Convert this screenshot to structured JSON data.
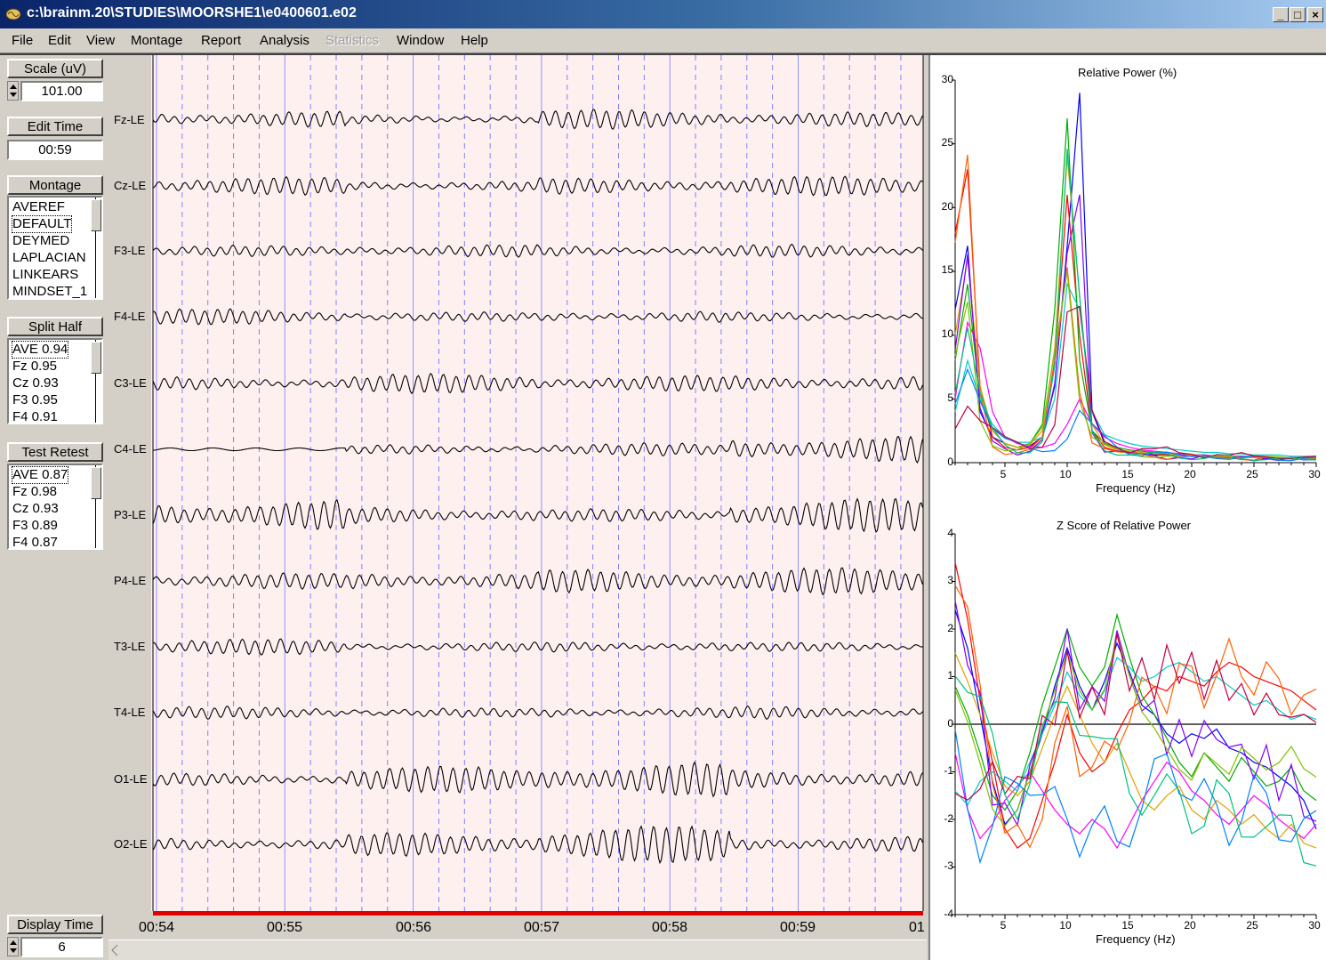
{
  "window": {
    "title": "c:\\brainm.20\\STUDIES\\MOORSHE1\\e0400601.e02",
    "controls": {
      "minimize": "_",
      "maximize": "□",
      "close": "×"
    }
  },
  "menu": [
    "File",
    "Edit",
    "View",
    "Montage",
    "Report",
    "Analysis",
    "Statistics",
    "Window",
    "Help"
  ],
  "menu_disabled": [
    "Statistics"
  ],
  "left_panel": {
    "scale_label": "Scale (uV)",
    "scale_value": "101.00",
    "edit_time_label": "Edit Time",
    "edit_time_value": "00:59",
    "montage_label": "Montage",
    "montage_items": [
      "AVEREF",
      "DEFAULT",
      "DEYMED",
      "LAPLACIAN",
      "LINKEARS",
      "MINDSET_1"
    ],
    "montage_selected": "DEFAULT",
    "split_half_label": "Split Half",
    "split_half_items": [
      "AVE  0.94",
      "Fz  0.95",
      "Cz  0.93",
      "F3  0.95",
      "F4  0.91"
    ],
    "test_retest_label": "Test Retest",
    "test_retest_items": [
      "AVE  0.87",
      "Fz  0.98",
      "Cz  0.93",
      "F3  0.89",
      "F4  0.87"
    ],
    "display_time_label": "Display Time",
    "display_time_value": "6"
  },
  "eeg": {
    "channels": [
      "Fz-LE",
      "Cz-LE",
      "F3-LE",
      "F4-LE",
      "C3-LE",
      "C4-LE",
      "P3-LE",
      "P4-LE",
      "T3-LE",
      "T4-LE",
      "O1-LE",
      "O2-LE"
    ],
    "time_labels": [
      "00:54",
      "00:55",
      "00:56",
      "00:57",
      "00:58",
      "00:59",
      "01"
    ]
  },
  "spectra": {
    "colors": [
      "#0000ff",
      "#ff0000",
      "#00aa00",
      "#ff00ff",
      "#00cccc",
      "#e0a000",
      "#8000ff",
      "#ff6000",
      "#80c000",
      "#0080ff",
      "#c00040",
      "#00c080"
    ],
    "relative_power": {
      "title": "Relative Power (%)",
      "y_ticks": [
        "30",
        "25",
        "20",
        "15",
        "10",
        "5",
        "0"
      ],
      "x_ticks": [
        "5",
        "10",
        "15",
        "20",
        "25",
        "30"
      ],
      "xlabel": "Frequency (Hz)"
    },
    "zscore": {
      "title": "Z Score of Relative Power",
      "y_ticks": [
        "4",
        "3",
        "2",
        "1",
        "0",
        "-1",
        "-2",
        "-3",
        "-4"
      ],
      "x_ticks": [
        "5",
        "10",
        "15",
        "20",
        "25",
        "30"
      ],
      "xlabel": "Frequency (Hz)"
    }
  },
  "chart_data": [
    {
      "type": "line",
      "title": "Relative Power (%)",
      "xlabel": "Frequency (Hz)",
      "ylabel": "",
      "xlim": [
        1,
        30
      ],
      "ylim": [
        0,
        30
      ],
      "x": [
        1,
        2,
        3,
        4,
        5,
        6,
        7,
        8,
        9,
        10,
        11,
        12,
        13,
        14,
        15,
        16,
        17,
        18,
        19,
        20,
        21,
        22,
        23,
        24,
        25,
        26,
        27,
        28,
        29,
        30
      ],
      "series": [
        {
          "values": [
            12,
            17,
            4,
            2,
            1.5,
            1.2,
            1.3,
            2,
            6,
            17,
            29,
            4,
            1.5,
            1,
            0.8,
            0.7,
            0.6,
            0.6,
            0.5,
            0.5,
            0.5,
            0.4,
            0.4,
            0.4,
            0.4,
            0.3,
            0.3,
            0.3,
            0.3,
            0.3
          ]
        },
        {
          "values": [
            18,
            23,
            6,
            2,
            1.2,
            1,
            1.2,
            2,
            8,
            21,
            10,
            2.5,
            1.2,
            0.9,
            0.8,
            0.7,
            0.7,
            0.6,
            0.6,
            0.6,
            0.5,
            0.5,
            0.5,
            0.5,
            0.4,
            0.4,
            0.4,
            0.4,
            0.4,
            0.4
          ]
        },
        {
          "values": [
            8,
            14,
            5,
            2.5,
            1.5,
            1.2,
            1.5,
            3,
            12,
            27,
            8,
            2.5,
            1.5,
            1.2,
            1,
            0.9,
            0.8,
            0.7,
            0.6,
            0.6,
            0.6,
            0.5,
            0.5,
            0.5,
            0.5,
            0.4,
            0.4,
            0.4,
            0.4,
            0.4
          ]
        },
        {
          "values": [
            5,
            11,
            9,
            4,
            2,
            1.5,
            1.3,
            1.2,
            1.5,
            3,
            5,
            3,
            2,
            1.5,
            1.2,
            1,
            0.9,
            0.8,
            0.7,
            0.6,
            0.6,
            0.5,
            0.5,
            0.5,
            0.4,
            0.4,
            0.4,
            0.4,
            0.4,
            0.4
          ]
        },
        {
          "values": [
            4,
            8,
            5,
            3,
            2,
            1.6,
            1.6,
            2,
            5,
            14,
            12,
            4,
            2.2,
            1.8,
            1.5,
            1.3,
            1.2,
            1.1,
            1,
            0.9,
            0.8,
            0.8,
            0.7,
            0.7,
            0.6,
            0.6,
            0.6,
            0.5,
            0.5,
            0.5
          ]
        },
        {
          "values": [
            10,
            16,
            6,
            2.5,
            1.5,
            1.2,
            1.4,
            2.5,
            9,
            24,
            13,
            3,
            1.4,
            1,
            0.9,
            0.8,
            0.7,
            0.7,
            0.6,
            0.6,
            0.5,
            0.5,
            0.5,
            0.4,
            0.4,
            0.4,
            0.4,
            0.4,
            0.3,
            0.3
          ]
        }
      ]
    },
    {
      "type": "line",
      "title": "Z Score of Relative Power",
      "xlabel": "Frequency (Hz)",
      "ylabel": "",
      "xlim": [
        1,
        30
      ],
      "ylim": [
        -4,
        4
      ],
      "x": [
        1,
        2,
        3,
        4,
        5,
        6,
        7,
        8,
        9,
        10,
        11,
        12,
        13,
        14,
        15,
        16,
        17,
        18,
        19,
        20,
        21,
        22,
        23,
        24,
        25,
        26,
        27,
        28,
        29,
        30
      ],
      "series": [
        {
          "values": [
            2.4,
            1.6,
            0.2,
            -1.2,
            -2.1,
            -1.8,
            -1,
            -0.2,
            0.8,
            1.6,
            0.8,
            0.3,
            0.9,
            1.7,
            1.1,
            0.4,
            0.2,
            -0.2,
            -0.4,
            -0.2,
            -0.3,
            -0.1,
            -0.5,
            -0.6,
            -0.8,
            -0.9,
            -1.1,
            -1.3,
            -1.6,
            -2.2
          ]
        },
        {
          "values": [
            3.4,
            2.2,
            0.5,
            -0.8,
            -2.2,
            -2.6,
            -2.4,
            -1.6,
            -0.8,
            0.2,
            -0.6,
            -1,
            -0.8,
            -0.2,
            0.3,
            0.5,
            0.8,
            0.7,
            1,
            0.9,
            0.8,
            1.1,
            1.3,
            1.2,
            1,
            0.9,
            0.8,
            0.7,
            0.5,
            0.3
          ]
        },
        {
          "values": [
            0.8,
            0.2,
            -0.6,
            -1.5,
            -1.8,
            -1.4,
            -0.6,
            0.4,
            1.2,
            2,
            1.2,
            0.8,
            1.2,
            2.3,
            1.4,
            0.6,
            0.2,
            -0.3,
            -0.8,
            -1.1,
            -0.6,
            -0.9,
            -1.2,
            -0.7,
            -1,
            -1.3,
            -1.2,
            -0.9,
            -1.4,
            -1.6
          ]
        },
        {
          "values": [
            -0.6,
            -1.8,
            -2.4,
            -2.1,
            -1.6,
            -1.3,
            -1,
            -1.4,
            -1.8,
            -2.1,
            -2.3,
            -2,
            -2.2,
            -2.6,
            -2.1,
            -1.6,
            -1.2,
            -0.8,
            -1,
            -1.4,
            -1.6,
            -1.9,
            -2.1,
            -1.8,
            -1.5,
            -1.7,
            -2,
            -2.2,
            -2.4,
            -2.1
          ]
        },
        {
          "values": [
            -1.4,
            -1.7,
            -1.2,
            -1,
            -1.2,
            -1.4,
            -0.8,
            -0.2,
            0.4,
            1.1,
            0.6,
            0.3,
            0.7,
            1.4,
            1.2,
            0.9,
            1,
            1.2,
            1.3,
            1.1,
            0.9,
            1,
            0.8,
            0.6,
            0.4,
            0.5,
            0.3,
            0.1,
            0.2,
            0.1
          ]
        },
        {
          "values": [
            1.5,
            0.9,
            0.2,
            -0.6,
            -1.3,
            -1.5,
            -1.2,
            -0.5,
            0.2,
            0.8,
            0.2,
            -0.4,
            -0.8,
            -0.4,
            -1,
            -1.6,
            -1.8,
            -1.5,
            -1.3,
            -1.8,
            -2,
            -1.6,
            -1.8,
            -2.1,
            -1.9,
            -2.2,
            -2.4,
            -2.1,
            -2.5,
            -2.6
          ]
        }
      ]
    }
  ]
}
